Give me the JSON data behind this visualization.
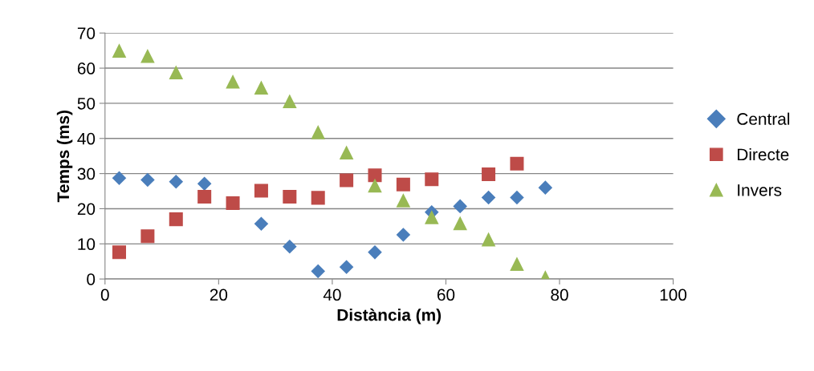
{
  "chart_data": {
    "type": "scatter",
    "xlabel": "Distància (m)",
    "ylabel": "Temps (ms)",
    "xlim": [
      0,
      100
    ],
    "xticks": [
      0,
      20,
      40,
      60,
      80,
      100
    ],
    "ylim": [
      0,
      70
    ],
    "yticks": [
      0,
      10,
      20,
      30,
      40,
      50,
      60,
      70
    ],
    "grid": "y",
    "legend": "right",
    "series": [
      {
        "name": "Central",
        "color": "#4a7ebb",
        "marker": "diamond",
        "x": [
          2.5,
          7.5,
          12.5,
          17.5,
          27.5,
          32.5,
          37.5,
          42.5,
          47.5,
          52.5,
          57.5,
          62.5,
          67.5,
          72.5,
          77.5
        ],
        "values": [
          28.7,
          28.2,
          27.7,
          27.1,
          15.7,
          9.2,
          2.2,
          3.4,
          7.6,
          12.6,
          19,
          20.7,
          23.2,
          23.2,
          26
        ]
      },
      {
        "name": "Directe",
        "color": "#be4b48",
        "marker": "square",
        "x": [
          2.5,
          7.5,
          12.5,
          17.5,
          22.5,
          27.5,
          32.5,
          37.5,
          42.5,
          47.5,
          52.5,
          57.5,
          67.5,
          72.5
        ],
        "values": [
          7.6,
          12.2,
          17,
          23.4,
          21.6,
          25.1,
          23.4,
          23.1,
          28.1,
          29.5,
          26.9,
          28.4,
          29.8,
          32.8
        ]
      },
      {
        "name": "Invers",
        "color": "#98b954",
        "marker": "triangle",
        "x": [
          2.5,
          7.5,
          12.5,
          22.5,
          27.5,
          32.5,
          37.5,
          42.5,
          47.5,
          52.5,
          57.5,
          62.5,
          67.5,
          72.5,
          77.5
        ],
        "values": [
          65,
          63.5,
          58.8,
          56.2,
          54.5,
          50.6,
          41.8,
          36,
          26.6,
          22.4,
          17.6,
          15.9,
          11.3,
          4.3,
          0.5
        ]
      }
    ]
  }
}
